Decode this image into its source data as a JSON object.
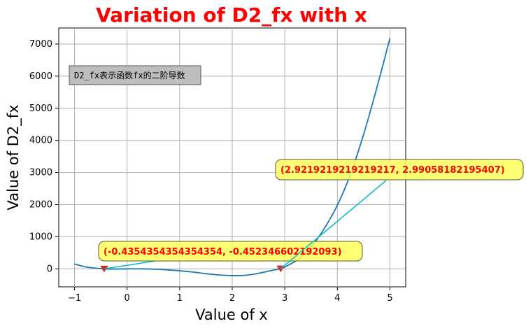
{
  "chart_data": {
    "type": "line",
    "title": "Variation of D2_fx with x",
    "xlabel": "Value of x",
    "ylabel": "Value of D2_fx",
    "xlim": [
      -1.3,
      5.3
    ],
    "ylim": [
      -560,
      7500
    ],
    "grid": true,
    "x_ticks": [
      -1,
      0,
      1,
      2,
      3,
      4,
      5
    ],
    "x_tick_labels": [
      "−1",
      "0",
      "1",
      "2",
      "3",
      "4",
      "5"
    ],
    "y_ticks": [
      0,
      1000,
      2000,
      3000,
      4000,
      5000,
      6000,
      7000
    ],
    "y_tick_labels": [
      "0",
      "1000",
      "2000",
      "3000",
      "4000",
      "5000",
      "6000",
      "7000"
    ],
    "series": [
      {
        "color": "#1f77b4",
        "x": [
          -1.0,
          -0.75,
          -0.4354,
          -0.25,
          0.0,
          0.25,
          0.5,
          0.75,
          1.0,
          1.25,
          1.5,
          1.75,
          2.0,
          2.25,
          2.5,
          2.75,
          2.9219,
          3.0,
          3.25,
          3.5,
          3.75,
          4.0,
          4.25,
          4.5,
          4.75,
          5.0
        ],
        "y": [
          150,
          50,
          -0.45,
          -6,
          0,
          0,
          -10,
          -30,
          -60,
          -100,
          -150,
          -190,
          -210,
          -200,
          -140,
          -50,
          3,
          60,
          290,
          680,
          1250,
          1980,
          2950,
          4190,
          5630,
          7180
        ]
      }
    ],
    "markers": [
      {
        "x": -0.4354354354354354,
        "y": -0.452346602192093,
        "color": "#d62728",
        "shape": "triangle-down"
      },
      {
        "x": 2.9219219219219217,
        "y": 2.99058182195407,
        "color": "#d62728",
        "shape": "triangle-down"
      }
    ],
    "annotations": [
      {
        "text": "(-0.4354354354354354, -0.452346602192093)",
        "target": {
          "x": -0.4354354354354354,
          "y": -0.452346602192093
        },
        "text_color": "#ff0000",
        "box_color": "#ffff55",
        "arrow_color": "#00bfbf"
      },
      {
        "text": "(2.9219219219219217, 2.99058182195407)",
        "target": {
          "x": 2.9219219219219217,
          "y": 2.99058182195407
        },
        "text_color": "#ff0000",
        "box_color": "#ffff55",
        "arrow_color": "#00bfbf"
      }
    ],
    "note": {
      "text": "D2_fx表示函数fx的二阶导数",
      "box_color": "#bdbdbd"
    }
  }
}
